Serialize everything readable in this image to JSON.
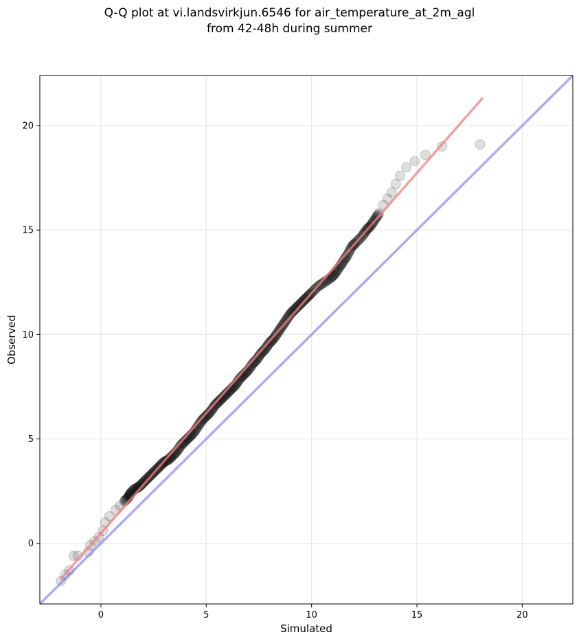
{
  "title": {
    "line1": "Q-Q plot at vi.landsvirkjun.6546 for air_temperature_at_2m_agl",
    "line2": "from 42-48h during summer"
  },
  "chart_data": {
    "type": "scatter",
    "xlabel": "Simulated",
    "ylabel": "Observed",
    "xlim": [
      -2.9,
      22.4
    ],
    "ylim": [
      -2.9,
      22.4
    ],
    "xticks": [
      0,
      5,
      10,
      15,
      20
    ],
    "yticks": [
      0,
      5,
      10,
      15,
      20
    ],
    "grid": true,
    "colors": {
      "points": "#000000",
      "fit_line": "#f08080",
      "identity_line": "#7777ee",
      "grid": "#e8e8e8"
    },
    "series": [
      {
        "type": "scatter",
        "points": [
          [
            -1.9,
            -1.8
          ],
          [
            -1.7,
            -1.5
          ],
          [
            -1.5,
            -1.3
          ],
          [
            -1.3,
            -0.6
          ],
          [
            -1.1,
            -0.6
          ],
          [
            -0.6,
            -0.4
          ],
          [
            -0.5,
            -0.1
          ],
          [
            -0.3,
            0.1
          ],
          [
            -0.1,
            0.3
          ],
          [
            0.1,
            0.6
          ],
          [
            0.2,
            1.0
          ],
          [
            0.4,
            1.3
          ],
          [
            0.7,
            1.6
          ],
          [
            0.9,
            1.8
          ],
          [
            1.1,
            2.0
          ],
          [
            1.3,
            2.2
          ],
          [
            1.4,
            2.4
          ],
          [
            1.6,
            2.6
          ],
          [
            1.8,
            2.7
          ],
          [
            2.0,
            2.9
          ],
          [
            2.2,
            3.1
          ],
          [
            2.4,
            3.3
          ],
          [
            2.6,
            3.5
          ],
          [
            2.8,
            3.7
          ],
          [
            3.0,
            3.9
          ],
          [
            3.2,
            4.0
          ],
          [
            3.4,
            4.2
          ],
          [
            3.6,
            4.4
          ],
          [
            3.8,
            4.7
          ],
          [
            4.0,
            4.9
          ],
          [
            4.2,
            5.1
          ],
          [
            4.4,
            5.3
          ],
          [
            4.6,
            5.6
          ],
          [
            4.8,
            5.9
          ],
          [
            5.0,
            6.1
          ],
          [
            5.2,
            6.3
          ],
          [
            5.4,
            6.6
          ],
          [
            5.6,
            6.8
          ],
          [
            5.8,
            7.0
          ],
          [
            6.0,
            7.2
          ],
          [
            6.2,
            7.4
          ],
          [
            6.4,
            7.6
          ],
          [
            6.6,
            7.9
          ],
          [
            6.8,
            8.1
          ],
          [
            7.0,
            8.3
          ],
          [
            7.2,
            8.6
          ],
          [
            7.4,
            8.8
          ],
          [
            7.6,
            9.1
          ],
          [
            7.8,
            9.3
          ],
          [
            8.0,
            9.6
          ],
          [
            8.2,
            9.8
          ],
          [
            8.4,
            10.1
          ],
          [
            8.6,
            10.4
          ],
          [
            8.8,
            10.7
          ],
          [
            9.0,
            11.0
          ],
          [
            9.2,
            11.2
          ],
          [
            9.4,
            11.4
          ],
          [
            9.6,
            11.6
          ],
          [
            9.8,
            11.8
          ],
          [
            10.0,
            12.0
          ],
          [
            10.3,
            12.3
          ],
          [
            10.6,
            12.5
          ],
          [
            10.9,
            12.7
          ],
          [
            11.1,
            12.9
          ],
          [
            11.3,
            13.2
          ],
          [
            11.5,
            13.5
          ],
          [
            11.7,
            13.8
          ],
          [
            11.9,
            14.2
          ],
          [
            12.1,
            14.4
          ],
          [
            12.4,
            14.7
          ],
          [
            12.6,
            15.0
          ],
          [
            12.8,
            15.2
          ],
          [
            13.0,
            15.5
          ],
          [
            13.2,
            15.8
          ],
          [
            13.4,
            16.2
          ],
          [
            13.6,
            16.5
          ],
          [
            13.8,
            16.8
          ],
          [
            14.0,
            17.2
          ],
          [
            14.2,
            17.6
          ],
          [
            14.5,
            18.0
          ],
          [
            14.9,
            18.3
          ],
          [
            15.4,
            18.6
          ],
          [
            16.2,
            19.0
          ],
          [
            18.0,
            19.1
          ]
        ]
      },
      {
        "type": "line",
        "name": "",
        "x": [
          -1.9,
          18.1
        ],
        "y": [
          -1.7,
          21.3
        ]
      },
      {
        "type": "line",
        "name": "",
        "x": [
          -2.9,
          22.4
        ],
        "y": [
          -2.9,
          22.4
        ]
      }
    ]
  }
}
